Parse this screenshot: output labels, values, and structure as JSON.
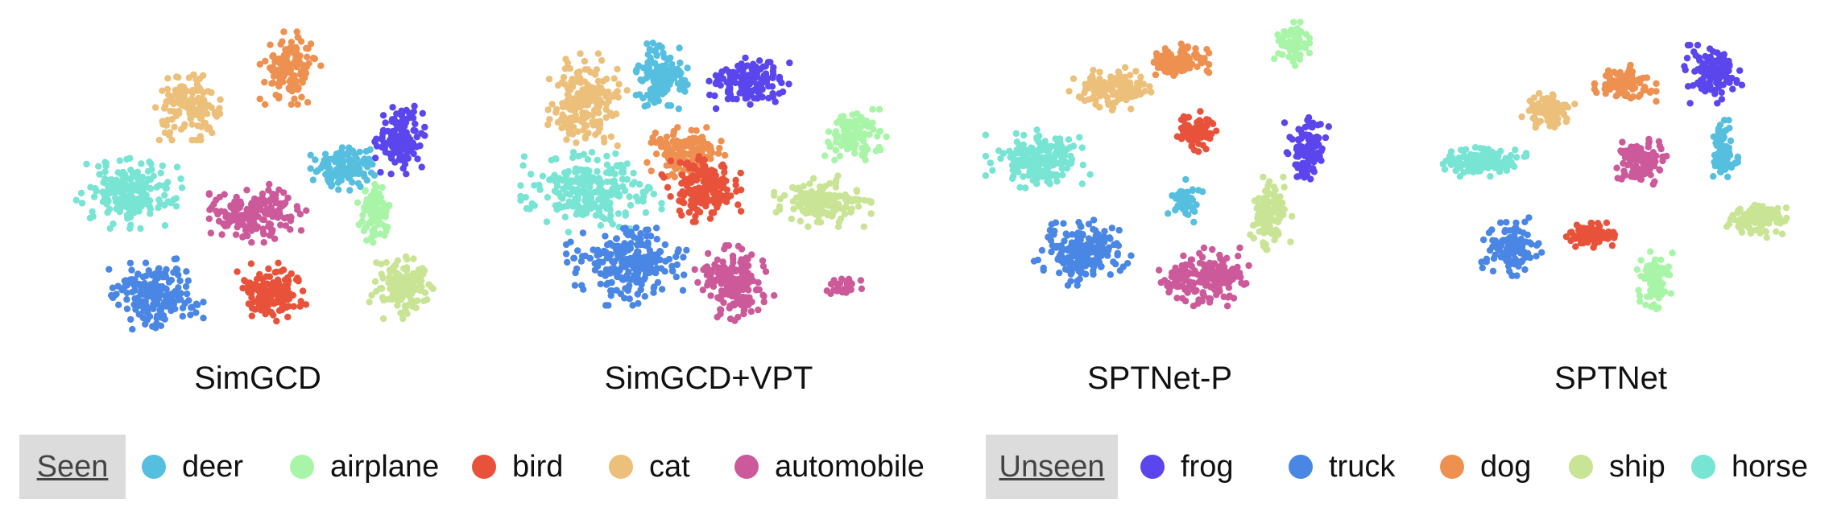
{
  "chart_data": [
    {
      "type": "scatter",
      "title": "SimGCD",
      "xlim": [
        0,
        100
      ],
      "ylim": [
        0,
        100
      ],
      "clusters": [
        {
          "class": "dog",
          "cx": 59,
          "cy": 86,
          "rx": 7,
          "ry": 10,
          "n": 140
        },
        {
          "class": "cat",
          "cx": 31,
          "cy": 73,
          "rx": 8,
          "ry": 9,
          "n": 140
        },
        {
          "class": "frog",
          "cx": 89,
          "cy": 63,
          "rx": 6,
          "ry": 10,
          "n": 140
        },
        {
          "class": "horse",
          "cx": 15,
          "cy": 45,
          "rx": 12,
          "ry": 10,
          "n": 200
        },
        {
          "class": "deer",
          "cx": 74,
          "cy": 54,
          "rx": 8,
          "ry": 7,
          "n": 130
        },
        {
          "class": "automobile",
          "cx": 50,
          "cy": 38,
          "rx": 11,
          "ry": 8,
          "n": 180
        },
        {
          "class": "airplane",
          "cx": 82,
          "cy": 38,
          "rx": 4,
          "ry": 8,
          "n": 90
        },
        {
          "class": "truck",
          "cx": 22,
          "cy": 11,
          "rx": 11,
          "ry": 10,
          "n": 200
        },
        {
          "class": "bird",
          "cx": 54,
          "cy": 12,
          "rx": 8,
          "ry": 8,
          "n": 140
        },
        {
          "class": "ship",
          "cx": 90,
          "cy": 14,
          "rx": 8,
          "ry": 9,
          "n": 150
        }
      ]
    },
    {
      "type": "scatter",
      "title": "SimGCD+VPT",
      "xlim": [
        0,
        100
      ],
      "ylim": [
        0,
        100
      ],
      "clusters": [
        {
          "class": "cat",
          "cx": 17,
          "cy": 74,
          "rx": 9,
          "ry": 14,
          "n": 180
        },
        {
          "class": "deer",
          "cx": 37,
          "cy": 83,
          "rx": 6,
          "ry": 10,
          "n": 150
        },
        {
          "class": "frog",
          "cx": 60,
          "cy": 81,
          "rx": 10,
          "ry": 7,
          "n": 150
        },
        {
          "class": "airplane",
          "cx": 90,
          "cy": 64,
          "rx": 7,
          "ry": 7,
          "n": 110
        },
        {
          "class": "dog",
          "cx": 44,
          "cy": 58,
          "rx": 9,
          "ry": 7,
          "n": 140
        },
        {
          "class": "bird",
          "cx": 48,
          "cy": 46,
          "rx": 9,
          "ry": 9,
          "n": 160
        },
        {
          "class": "horse",
          "cx": 18,
          "cy": 45,
          "rx": 16,
          "ry": 11,
          "n": 240
        },
        {
          "class": "ship",
          "cx": 81,
          "cy": 42,
          "rx": 11,
          "ry": 7,
          "n": 170
        },
        {
          "class": "truck",
          "cx": 28,
          "cy": 22,
          "rx": 14,
          "ry": 12,
          "n": 240
        },
        {
          "class": "automobile",
          "cx": 57,
          "cy": 15,
          "rx": 9,
          "ry": 11,
          "n": 180
        },
        {
          "class": "automobile",
          "cx": 87,
          "cy": 14,
          "rx": 4,
          "ry": 3,
          "n": 30
        }
      ]
    },
    {
      "type": "scatter",
      "title": "SPTNet-P",
      "xlim": [
        0,
        100
      ],
      "ylim": [
        0,
        100
      ],
      "clusters": [
        {
          "class": "airplane",
          "cx": 86,
          "cy": 94,
          "rx": 4,
          "ry": 6,
          "n": 70
        },
        {
          "class": "dog",
          "cx": 55,
          "cy": 88,
          "rx": 7,
          "ry": 5,
          "n": 110
        },
        {
          "class": "cat",
          "cx": 37,
          "cy": 79,
          "rx": 10,
          "ry": 6,
          "n": 140
        },
        {
          "class": "bird",
          "cx": 60,
          "cy": 65,
          "rx": 5,
          "ry": 6,
          "n": 90
        },
        {
          "class": "frog",
          "cx": 90,
          "cy": 60,
          "rx": 5,
          "ry": 9,
          "n": 100
        },
        {
          "class": "horse",
          "cx": 17,
          "cy": 56,
          "rx": 12,
          "ry": 8,
          "n": 190
        },
        {
          "class": "deer",
          "cx": 57,
          "cy": 42,
          "rx": 4,
          "ry": 6,
          "n": 60
        },
        {
          "class": "ship",
          "cx": 80,
          "cy": 38,
          "rx": 5,
          "ry": 10,
          "n": 110
        },
        {
          "class": "truck",
          "cx": 29,
          "cy": 25,
          "rx": 11,
          "ry": 9,
          "n": 190
        },
        {
          "class": "automobile",
          "cx": 63,
          "cy": 17,
          "rx": 11,
          "ry": 8,
          "n": 180
        }
      ]
    },
    {
      "type": "scatter",
      "title": "SPTNet",
      "xlim": [
        0,
        100
      ],
      "ylim": [
        0,
        100
      ],
      "clusters": [
        {
          "class": "frog",
          "cx": 78,
          "cy": 84,
          "rx": 7,
          "ry": 8,
          "n": 130
        },
        {
          "class": "dog",
          "cx": 54,
          "cy": 81,
          "rx": 7,
          "ry": 5,
          "n": 100
        },
        {
          "class": "cat",
          "cx": 33,
          "cy": 72,
          "rx": 6,
          "ry": 5,
          "n": 90
        },
        {
          "class": "deer",
          "cx": 81,
          "cy": 58,
          "rx": 3,
          "ry": 9,
          "n": 80
        },
        {
          "class": "horse",
          "cx": 15,
          "cy": 55,
          "rx": 10,
          "ry": 4,
          "n": 150
        },
        {
          "class": "automobile",
          "cx": 58,
          "cy": 55,
          "rx": 6,
          "ry": 7,
          "n": 120
        },
        {
          "class": "ship",
          "cx": 90,
          "cy": 36,
          "rx": 7,
          "ry": 5,
          "n": 110
        },
        {
          "class": "bird",
          "cx": 45,
          "cy": 31,
          "rx": 7,
          "ry": 4,
          "n": 90
        },
        {
          "class": "truck",
          "cx": 23,
          "cy": 27,
          "rx": 7,
          "ry": 8,
          "n": 120
        },
        {
          "class": "airplane",
          "cx": 62,
          "cy": 16,
          "rx": 4,
          "ry": 8,
          "n": 90
        }
      ]
    }
  ],
  "legend": {
    "seen_label": "Seen",
    "seen": [
      {
        "name": "deer",
        "color": "#56bfe0"
      },
      {
        "name": "airplane",
        "color": "#a8f5a8"
      },
      {
        "name": "bird",
        "color": "#e8523a"
      },
      {
        "name": "cat",
        "color": "#ecc07a"
      },
      {
        "name": "automobile",
        "color": "#cc5a9a"
      }
    ],
    "unseen_label": "Unseen",
    "unseen": [
      {
        "name": "frog",
        "color": "#5a46ec"
      },
      {
        "name": "truck",
        "color": "#4a86e4"
      },
      {
        "name": "dog",
        "color": "#ee9050"
      },
      {
        "name": "ship",
        "color": "#c8e494"
      },
      {
        "name": "horse",
        "color": "#78e4d4"
      }
    ]
  }
}
